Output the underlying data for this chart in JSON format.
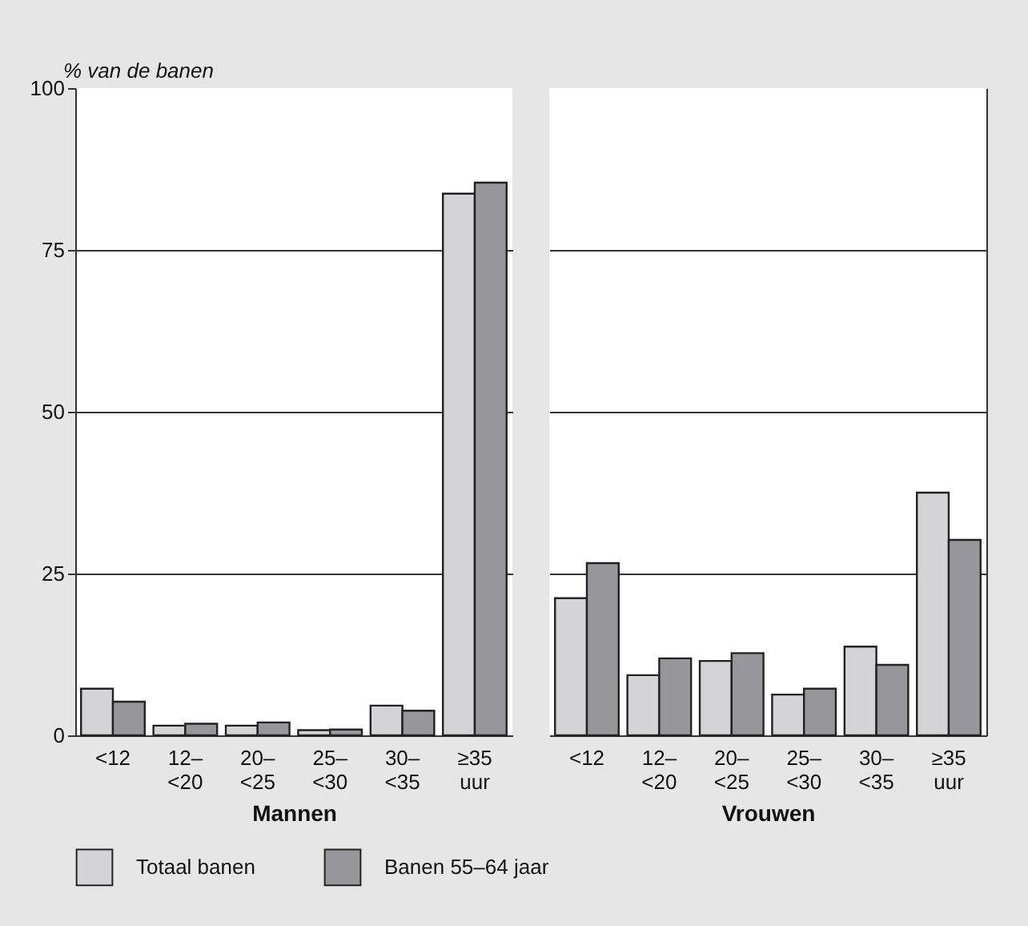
{
  "chart_data": [
    {
      "type": "bar",
      "ylabel": "% van de banen",
      "xlabel": "Mannen",
      "categories": [
        "<12",
        "12–\n<20",
        "20–\n<25",
        "25–\n<30",
        "30–\n<35",
        "≥35\nuur"
      ],
      "series": [
        {
          "name": "Totaal banen",
          "color": "#d4d4d6",
          "values": [
            7.2,
            1.5,
            1.5,
            0.8,
            4.6,
            83.7
          ]
        },
        {
          "name": "Banen 55–64 jaar",
          "color": "#97979b",
          "values": [
            5.2,
            1.8,
            2,
            0.9,
            3.8,
            85.4
          ]
        }
      ],
      "ylim": [
        0,
        100
      ],
      "yticks": [
        0,
        25,
        50,
        75,
        100
      ],
      "grid": "y",
      "legend": "bottom"
    },
    {
      "type": "bar",
      "xlabel": "Vrouwen",
      "categories": [
        "<12",
        "12–\n<20",
        "20–\n<25",
        "25–\n<30",
        "30–\n<35",
        "≥35\nuur"
      ],
      "series": [
        {
          "name": "Totaal banen",
          "color": "#d4d4d6",
          "values": [
            21.2,
            9.3,
            11.5,
            6.3,
            13.7,
            37.5
          ]
        },
        {
          "name": "Banen 55–64 jaar",
          "color": "#97979b",
          "values": [
            26.6,
            11.9,
            12.7,
            7.2,
            10.9,
            30.2
          ]
        }
      ],
      "ylim": [
        0,
        100
      ],
      "yticks": [
        0,
        25,
        50,
        75,
        100
      ],
      "grid": "y",
      "tick_labels": "x"
    }
  ]
}
